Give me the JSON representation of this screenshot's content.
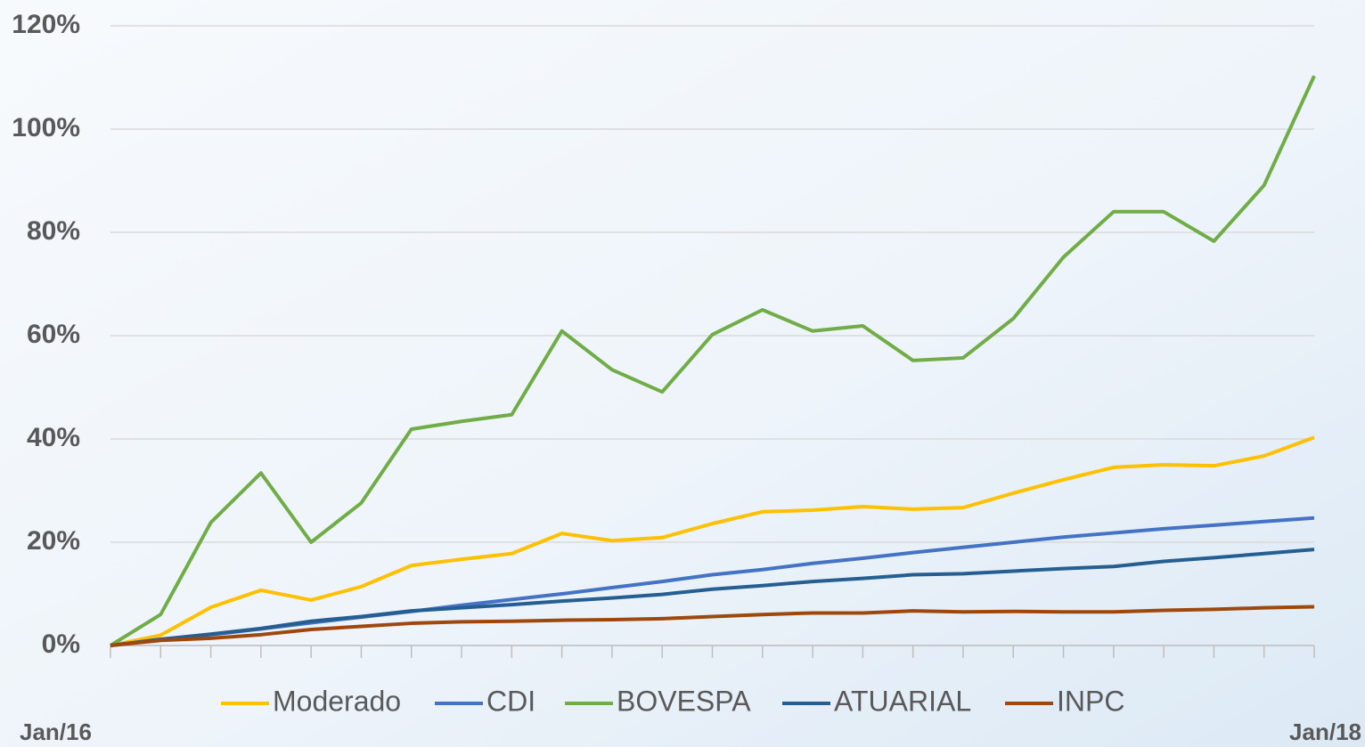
{
  "chart_data": {
    "type": "line",
    "categories": [
      "Jan/16",
      null,
      null,
      null,
      null,
      null,
      null,
      null,
      null,
      null,
      null,
      null,
      null,
      null,
      null,
      null,
      null,
      null,
      null,
      null,
      null,
      null,
      null,
      null,
      "Jan/18"
    ],
    "series": [
      {
        "name": "Moderado",
        "color": "#ffc000",
        "values": [
          0,
          2,
          7.4,
          10.7,
          8.8,
          11.4,
          15.5,
          16.7,
          17.8,
          21.7,
          20.3,
          20.9,
          23.6,
          25.9,
          26.2,
          26.9,
          26.4,
          26.7,
          29.5,
          32.1,
          34.5,
          35,
          34.8,
          36.7,
          40.3
        ]
      },
      {
        "name": "CDI",
        "color": "#4472c4",
        "values": [
          0,
          1.1,
          2.1,
          3.2,
          4.4,
          5.5,
          6.6,
          7.8,
          8.9,
          10,
          11.2,
          12.4,
          13.7,
          14.7,
          15.9,
          16.9,
          18,
          19,
          20,
          21,
          21.8,
          22.6,
          23.3,
          24,
          24.7
        ]
      },
      {
        "name": "BOVESPA",
        "color": "#70ad47",
        "values": [
          0,
          6,
          23.8,
          33.4,
          20,
          27.6,
          41.9,
          43.4,
          44.7,
          60.9,
          53.4,
          49.1,
          60.2,
          65,
          60.9,
          61.9,
          55.2,
          55.7,
          63.3,
          75.2,
          84,
          84,
          78.3,
          89.1,
          110.3
        ]
      },
      {
        "name": "ATUARIAL",
        "color": "#255e91",
        "values": [
          0,
          1.2,
          2.2,
          3.3,
          4.7,
          5.6,
          6.7,
          7.3,
          7.9,
          8.6,
          9.2,
          9.9,
          10.9,
          11.6,
          12.4,
          13,
          13.7,
          13.9,
          14.4,
          14.9,
          15.3,
          16.3,
          17,
          17.8,
          18.6
        ]
      },
      {
        "name": "INPC",
        "color": "#9e480e",
        "values": [
          0,
          1,
          1.4,
          2.1,
          3.1,
          3.7,
          4.3,
          4.6,
          4.7,
          4.9,
          5,
          5.2,
          5.6,
          6,
          6.3,
          6.3,
          6.7,
          6.5,
          6.6,
          6.5,
          6.5,
          6.8,
          7,
          7.3,
          7.5
        ]
      }
    ],
    "ylim": [
      0,
      120
    ],
    "yticks": [
      {
        "value": 0,
        "label": "0%"
      },
      {
        "value": 20,
        "label": "20%"
      },
      {
        "value": 40,
        "label": "40%"
      },
      {
        "value": 60,
        "label": "60%"
      },
      {
        "value": 80,
        "label": "80%"
      },
      {
        "value": 100,
        "label": "100%"
      },
      {
        "value": 120,
        "label": "120%"
      }
    ],
    "grid": true,
    "legend": "bottom"
  }
}
